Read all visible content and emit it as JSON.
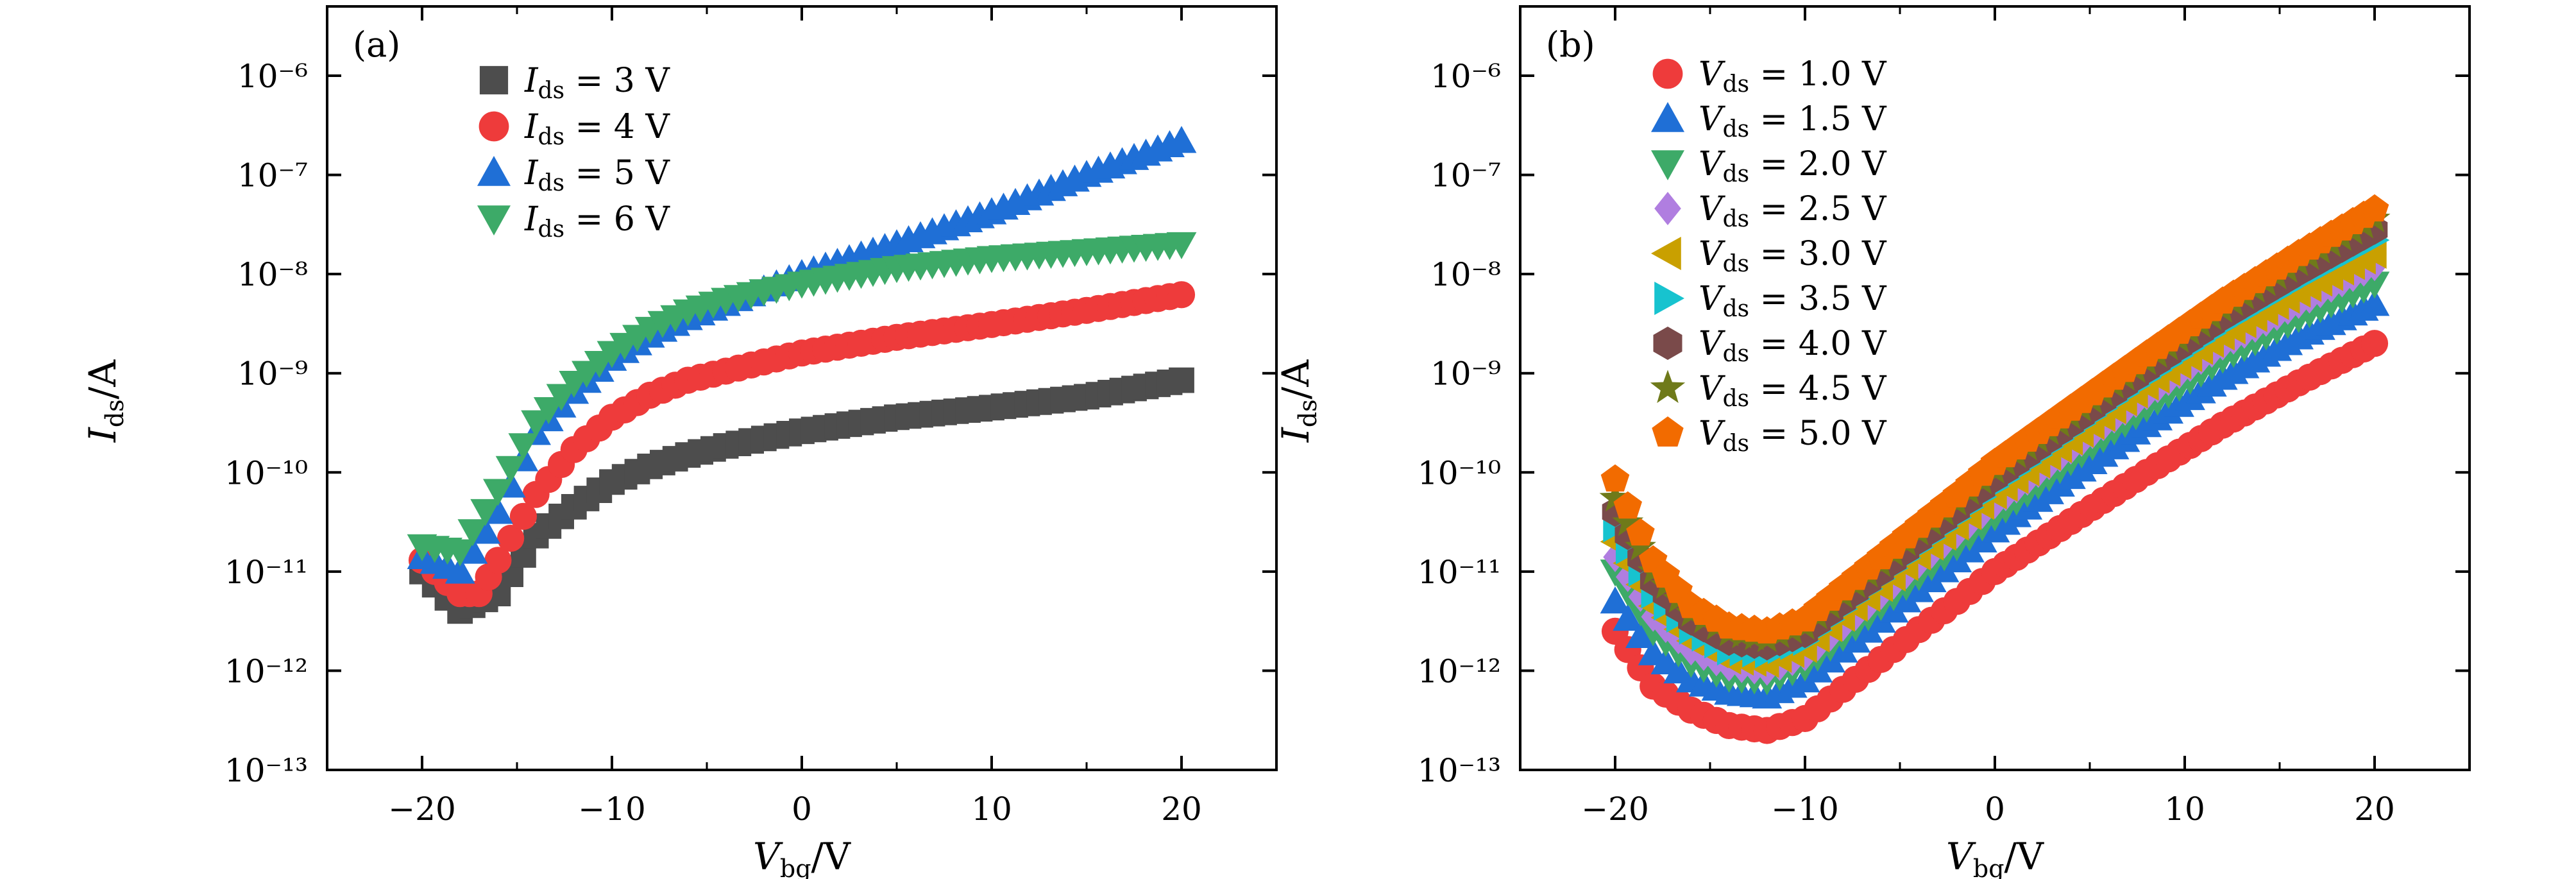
{
  "chart_data": [
    {
      "panel_label": "(a)",
      "type": "scatter",
      "xlabel": "V_bg/V",
      "ylabel": "I_ds/A",
      "x_scale": "linear",
      "y_scale": "log",
      "xlim": [
        -25,
        25
      ],
      "ylim": [
        1e-13,
        5e-06
      ],
      "x_ticks": [
        -20,
        -10,
        0,
        10,
        20
      ],
      "x_tick_labels": [
        "−20",
        "−10",
        "0",
        "10",
        "20"
      ],
      "y_ticks": [
        1e-13,
        1e-12,
        1e-11,
        1e-10,
        1e-09,
        1e-08,
        1e-07,
        1e-06
      ],
      "y_tick_labels": [
        "10⁻¹³",
        "10⁻¹²",
        "10⁻¹¹",
        "10⁻¹⁰",
        "10⁻⁹",
        "10⁻⁸",
        "10⁻⁷",
        "10⁻⁶"
      ],
      "grid": false,
      "legend_position": "top-left",
      "series": [
        {
          "name": "I_ds = 3 V",
          "marker": "square",
          "color": "#4d4d4d",
          "x": [
            -20,
            -18,
            -16,
            -14,
            -12,
            -10,
            -8,
            -6,
            -4,
            -2,
            0,
            5,
            10,
            15,
            20
          ],
          "y": [
            1e-11,
            4e-12,
            6e-12,
            2.3e-11,
            4.5e-11,
            8e-11,
            1.15e-10,
            1.5e-10,
            1.85e-10,
            2.2e-10,
            2.6e-10,
            3.6e-10,
            4.5e-10,
            5.8e-10,
            8.5e-10
          ]
        },
        {
          "name": "I_ds = 4 V",
          "marker": "circle",
          "color": "#ee3b3b",
          "x": [
            -20,
            -18,
            -17,
            -16,
            -14,
            -12,
            -10,
            -8,
            -6,
            -4,
            -2,
            0,
            5,
            10,
            15,
            20
          ],
          "y": [
            1.3e-11,
            6e-12,
            6e-12,
            1.3e-11,
            6e-11,
            1.7e-10,
            3.6e-10,
            6e-10,
            8.5e-10,
            1.05e-09,
            1.3e-09,
            1.6e-09,
            2.3e-09,
            3.1e-09,
            4.3e-09,
            6.2e-09
          ]
        },
        {
          "name": "I_ds = 5 V",
          "marker": "triangle-up",
          "color": "#1f6fd6",
          "x": [
            -20,
            -18,
            -16,
            -14,
            -12,
            -10,
            -8,
            -6,
            -4,
            -2,
            0,
            5,
            10,
            15,
            20
          ],
          "y": [
            1.4e-11,
            1e-11,
            4e-11,
            2.5e-10,
            6.5e-10,
            1.4e-09,
            2.4e-09,
            3.6e-09,
            5e-09,
            7e-09,
            1e-08,
            2e-08,
            4.2e-08,
            1e-07,
            2.2e-07
          ]
        },
        {
          "name": "I_ds = 6 V",
          "marker": "triangle-down",
          "color": "#3daa68",
          "x": [
            -20,
            -18,
            -16,
            -14,
            -12,
            -10,
            -8,
            -6,
            -4,
            -2,
            0,
            5,
            10,
            15,
            20
          ],
          "y": [
            1.8e-11,
            1.6e-11,
            6.5e-11,
            3.2e-10,
            8e-10,
            1.6e-09,
            2.8e-09,
            4.2e-09,
            5.5e-09,
            6.7e-09,
            8e-09,
            1.15e-08,
            1.45e-08,
            1.7e-08,
            2e-08
          ]
        }
      ]
    },
    {
      "panel_label": "(b)",
      "type": "scatter",
      "xlabel": "V_bg/V",
      "ylabel": "I_ds/A",
      "x_scale": "linear",
      "y_scale": "log",
      "xlim": [
        -25,
        25
      ],
      "ylim": [
        1e-13,
        5e-06
      ],
      "x_ticks": [
        -20,
        -10,
        0,
        10,
        20
      ],
      "x_tick_labels": [
        "−20",
        "−10",
        "0",
        "10",
        "20"
      ],
      "y_ticks": [
        1e-13,
        1e-12,
        1e-11,
        1e-10,
        1e-09,
        1e-08,
        1e-07,
        1e-06
      ],
      "y_tick_labels": [
        "10⁻¹³",
        "10⁻¹²",
        "10⁻¹¹",
        "10⁻¹⁰",
        "10⁻⁹",
        "10⁻⁸",
        "10⁻⁷",
        "10⁻⁶"
      ],
      "grid": false,
      "legend_position": "top-left",
      "common_x": [
        -20,
        -18,
        -16,
        -14,
        -12,
        -10,
        -8,
        -6,
        -4,
        -2,
        0,
        4,
        8,
        12,
        16,
        20
      ],
      "series": [
        {
          "name": "V_ds = 1.0 V",
          "marker": "circle",
          "color": "#ee3b3b",
          "y": [
            2.5e-12,
            7e-13,
            4e-13,
            2.8e-13,
            2.5e-13,
            3.3e-13,
            6.5e-13,
            1.3e-12,
            2.6e-12,
            5e-12,
            1e-11,
            3.2e-11,
            1e-10,
            3e-10,
            8e-10,
            2e-09
          ]
        },
        {
          "name": "V_ds = 1.5 V",
          "marker": "triangle-up",
          "color": "#1f6fd6",
          "y": [
            5e-12,
            1.5e-12,
            8e-13,
            6e-13,
            5.5e-13,
            8e-13,
            1.6e-12,
            3.2e-12,
            6.5e-12,
            1.3e-11,
            2.6e-11,
            9e-11,
            3e-10,
            9e-10,
            2.3e-09,
            5e-09
          ]
        },
        {
          "name": "V_ds = 2.0 V",
          "marker": "triangle-down",
          "color": "#3daa68",
          "y": [
            1e-11,
            2.5e-12,
            1.2e-12,
            8.5e-13,
            8e-13,
            1.1e-12,
            2.2e-12,
            4.5e-12,
            9e-12,
            1.8e-11,
            3.6e-11,
            1.3e-10,
            4.5e-10,
            1.4e-09,
            3.6e-09,
            8e-09
          ]
        },
        {
          "name": "V_ds = 2.5 V",
          "marker": "diamond",
          "color": "#b07ee0",
          "y": [
            1.4e-11,
            3.5e-12,
            1.6e-12,
            1.1e-12,
            1e-12,
            1.4e-12,
            2.8e-12,
            5.8e-12,
            1.2e-11,
            2.4e-11,
            4.8e-11,
            1.7e-10,
            6e-10,
            1.9e-09,
            5e-09,
            1.2e-08
          ]
        },
        {
          "name": "V_ds = 3.0 V",
          "marker": "triangle-left",
          "color": "#c9a000",
          "y": [
            2e-11,
            4.5e-12,
            2e-12,
            1.3e-12,
            1.2e-12,
            1.7e-12,
            3.5e-12,
            7e-12,
            1.45e-11,
            2.9e-11,
            6e-11,
            2.1e-10,
            7.5e-10,
            2.4e-09,
            6.5e-09,
            1.6e-08
          ]
        },
        {
          "name": "V_ds = 3.5 V",
          "marker": "triangle-right",
          "color": "#17c3cf",
          "y": [
            2.8e-11,
            6e-12,
            2.6e-12,
            1.6e-12,
            1.5e-12,
            2e-12,
            4.2e-12,
            8.5e-12,
            1.75e-11,
            3.5e-11,
            7.2e-11,
            2.6e-10,
            9e-10,
            3e-09,
            8.5e-09,
            2.2e-08
          ]
        },
        {
          "name": "V_ds = 4.0 V",
          "marker": "hexagon",
          "color": "#7a4a4a",
          "y": [
            4e-11,
            8e-12,
            3.2e-12,
            2e-12,
            1.8e-12,
            2.4e-12,
            5e-12,
            1e-11,
            2.1e-11,
            4.2e-11,
            8.8e-11,
            3.1e-10,
            1.1e-09,
            3.7e-09,
            1.05e-08,
            2.8e-08
          ]
        },
        {
          "name": "V_ds = 4.5 V",
          "marker": "star",
          "color": "#6f7a1a",
          "y": [
            5.5e-11,
            1e-11,
            3.8e-12,
            2.4e-12,
            2.1e-12,
            2.8e-12,
            5.8e-12,
            1.2e-11,
            2.5e-11,
            5e-11,
            1.05e-10,
            3.7e-10,
            1.3e-09,
            4.4e-09,
            1.3e-08,
            3.6e-08
          ]
        },
        {
          "name": "V_ds = 5.0 V",
          "marker": "pentagon",
          "color": "#f26b00",
          "y": [
            8.5e-11,
            1.3e-11,
            4.5e-12,
            2.8e-12,
            2.5e-12,
            3.3e-12,
            6.8e-12,
            1.4e-11,
            2.9e-11,
            5.9e-11,
            1.25e-10,
            4.4e-10,
            1.55e-09,
            5.3e-09,
            1.6e-08,
            4.5e-08
          ]
        }
      ]
    }
  ]
}
